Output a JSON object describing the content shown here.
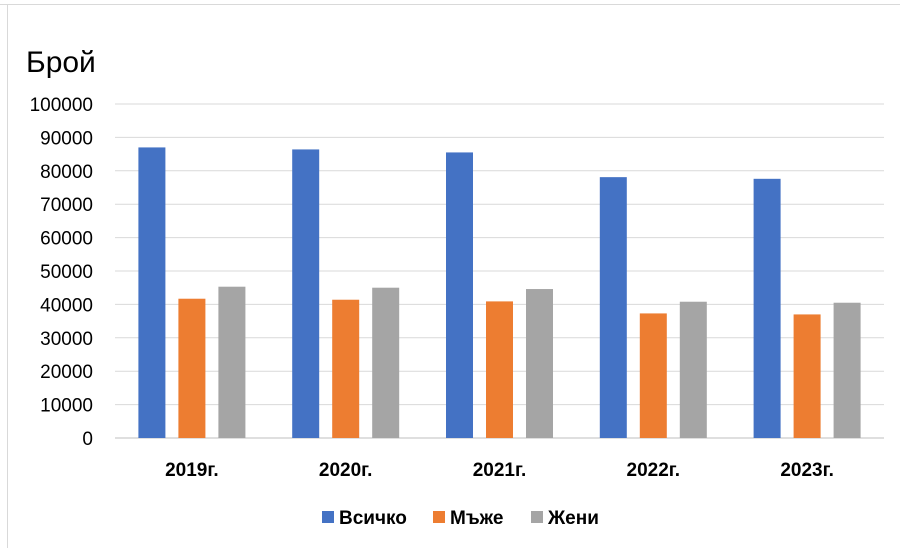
{
  "chart_data": {
    "type": "bar",
    "ylabel": "Брой",
    "categories": [
      "2019г.",
      "2020г.",
      "2021г.",
      "2022г.",
      "2023г."
    ],
    "ylim": [
      0,
      100000
    ],
    "yticks": [
      "0",
      "10000",
      "20000",
      "30000",
      "40000",
      "50000",
      "60000",
      "70000",
      "80000",
      "90000",
      "100000"
    ],
    "grid": true,
    "legend_position": "bottom",
    "series": [
      {
        "name": "Всичко",
        "color": "#4472C4",
        "values": [
          87000,
          86400,
          85500,
          78100,
          77600
        ]
      },
      {
        "name": "Мъже",
        "color": "#ED7D31",
        "values": [
          41700,
          41400,
          40900,
          37300,
          37000
        ]
      },
      {
        "name": "Жени",
        "color": "#A5A5A5",
        "values": [
          45300,
          45000,
          44600,
          40800,
          40500
        ]
      }
    ]
  }
}
